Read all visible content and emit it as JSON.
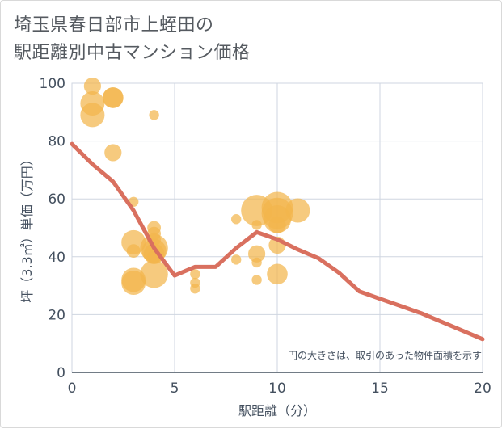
{
  "title_line1": "埼玉県春日部市上蛭田の",
  "title_line2": "駅距離別中古マンション価格",
  "chart_data": {
    "type": "scatter",
    "title": "埼玉県春日部市上蛭田の駅距離別中古マンション価格",
    "xlabel": "駅距離（分）",
    "ylabel": "坪（3.3㎡）単価（万円）",
    "xlim": [
      0,
      20
    ],
    "ylim": [
      0,
      100
    ],
    "xticks": [
      0,
      5,
      10,
      15,
      20
    ],
    "yticks": [
      0,
      20,
      40,
      60,
      80,
      100
    ],
    "grid": true,
    "annotation": "円の大きさは、取引のあった物件面積を示す",
    "colors": {
      "bubble": "#f2b54c",
      "line": "#d9705f",
      "grid": "#cfd6e0",
      "axis": "#44505f"
    },
    "bubbles": [
      {
        "x": 1,
        "y": 99,
        "size": 3
      },
      {
        "x": 1,
        "y": 93,
        "size": 5
      },
      {
        "x": 1,
        "y": 89,
        "size": 5
      },
      {
        "x": 2,
        "y": 95,
        "size": 4
      },
      {
        "x": 2,
        "y": 95,
        "size": 4
      },
      {
        "x": 2,
        "y": 76,
        "size": 3
      },
      {
        "x": 4,
        "y": 89,
        "size": 1
      },
      {
        "x": 3,
        "y": 59,
        "size": 1
      },
      {
        "x": 3,
        "y": 45,
        "size": 5
      },
      {
        "x": 3,
        "y": 42,
        "size": 2
      },
      {
        "x": 3,
        "y": 32,
        "size": 5
      },
      {
        "x": 3,
        "y": 31,
        "size": 5
      },
      {
        "x": 4,
        "y": 50,
        "size": 2
      },
      {
        "x": 4,
        "y": 48,
        "size": 2
      },
      {
        "x": 4,
        "y": 46,
        "size": 2
      },
      {
        "x": 4,
        "y": 43,
        "size": 6
      },
      {
        "x": 4,
        "y": 42,
        "size": 5
      },
      {
        "x": 4,
        "y": 41,
        "size": 4
      },
      {
        "x": 4,
        "y": 40,
        "size": 2
      },
      {
        "x": 4,
        "y": 34,
        "size": 6
      },
      {
        "x": 6,
        "y": 34,
        "size": 1
      },
      {
        "x": 6,
        "y": 31,
        "size": 1
      },
      {
        "x": 6,
        "y": 29,
        "size": 1
      },
      {
        "x": 8,
        "y": 53,
        "size": 1
      },
      {
        "x": 8,
        "y": 39,
        "size": 1
      },
      {
        "x": 9,
        "y": 56,
        "size": 7
      },
      {
        "x": 9,
        "y": 51,
        "size": 1
      },
      {
        "x": 9,
        "y": 41,
        "size": 3
      },
      {
        "x": 9,
        "y": 38,
        "size": 1
      },
      {
        "x": 9,
        "y": 32,
        "size": 1
      },
      {
        "x": 10,
        "y": 57,
        "size": 7
      },
      {
        "x": 10,
        "y": 55,
        "size": 7
      },
      {
        "x": 10,
        "y": 53,
        "size": 6
      },
      {
        "x": 10,
        "y": 51,
        "size": 3
      },
      {
        "x": 10,
        "y": 44,
        "size": 3
      },
      {
        "x": 10,
        "y": 34,
        "size": 4
      },
      {
        "x": 11,
        "y": 56,
        "size": 5
      }
    ],
    "trend": {
      "x": [
        0,
        1,
        2,
        3,
        4,
        5,
        6,
        7,
        8,
        9,
        10,
        11,
        12,
        13,
        14,
        15,
        16,
        17,
        18,
        19,
        20
      ],
      "y": [
        79,
        72,
        66,
        56,
        43,
        33.5,
        36.5,
        36.5,
        43,
        48.5,
        46,
        42.5,
        39.5,
        34.5,
        28,
        25.5,
        23,
        20.5,
        17.5,
        14.5,
        11.5
      ]
    }
  }
}
